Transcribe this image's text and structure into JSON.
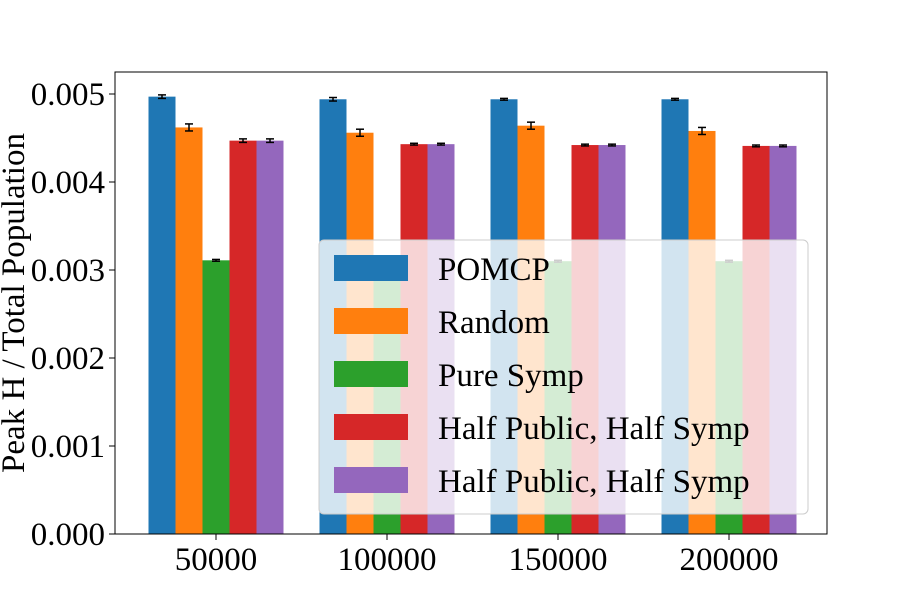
{
  "chart_data": {
    "type": "bar",
    "title": "",
    "xlabel": "",
    "ylabel": "Peak H / Total Population",
    "categories": [
      "50000",
      "100000",
      "150000",
      "200000"
    ],
    "ylim": [
      0,
      0.00525
    ],
    "yticks": [
      0.0,
      0.001,
      0.002,
      0.003,
      0.004,
      0.005
    ],
    "ytick_labels": [
      "0.000",
      "0.001",
      "0.002",
      "0.003",
      "0.004",
      "0.005"
    ],
    "grid": false,
    "legend_placement": "lower-right",
    "series": [
      {
        "name": "POMCP",
        "color": "#1f77b4",
        "values": [
          0.00497,
          0.00494,
          0.00494,
          0.00494
        ],
        "errors": [
          2e-05,
          2e-05,
          1e-05,
          1e-05
        ]
      },
      {
        "name": "Random",
        "color": "#ff7f0e",
        "values": [
          0.00462,
          0.00456,
          0.00464,
          0.00458
        ],
        "errors": [
          4e-05,
          4e-05,
          4e-05,
          4e-05
        ]
      },
      {
        "name": "Pure Symp",
        "color": "#2ca02c",
        "values": [
          0.00311,
          0.0031,
          0.0031,
          0.0031
        ],
        "errors": [
          1e-05,
          1e-05,
          1e-05,
          1e-05
        ]
      },
      {
        "name": "Half Public, Half Symp",
        "color": "#d62728",
        "values": [
          0.00447,
          0.00443,
          0.00442,
          0.00441
        ],
        "errors": [
          2e-05,
          1e-05,
          1e-05,
          1e-05
        ]
      },
      {
        "name": "Half Public, Half Symp",
        "color": "#9467bd",
        "values": [
          0.00447,
          0.00443,
          0.00442,
          0.00441
        ],
        "errors": [
          2e-05,
          1e-05,
          1e-05,
          1e-05
        ]
      }
    ]
  }
}
